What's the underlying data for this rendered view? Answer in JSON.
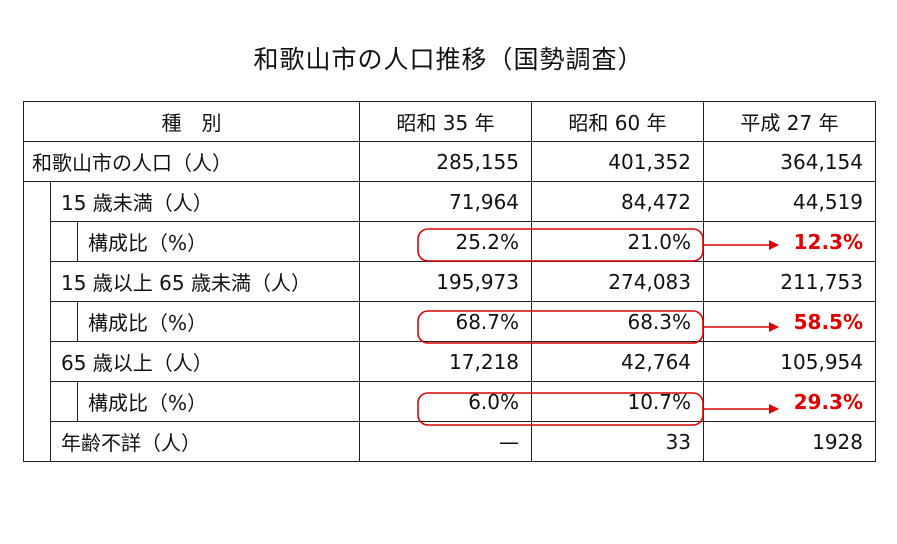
{
  "title": "和歌山市の人口推移（国勢調査）",
  "headers": [
    "種　別",
    "昭和 35 年",
    "昭和 60 年",
    "平成 27 年"
  ],
  "rows": {
    "total": {
      "label": "和歌山市の人口（人）",
      "v1": "285,155",
      "v2": "401,352",
      "v3": "364,154"
    },
    "under15": {
      "label": "15 歳未満（人）",
      "v1": "71,964",
      "v2": "84,472",
      "v3": "44,519"
    },
    "under15_ratio": {
      "label": "構成比（%）",
      "v1": "25.2%",
      "v2": "21.0%",
      "v3": "12.3%"
    },
    "mid": {
      "label": "15 歳以上 65 歳未満（人）",
      "v1": "195,973",
      "v2": "274,083",
      "v3": "211,753"
    },
    "mid_ratio": {
      "label": "構成比（%）",
      "v1": "68.7%",
      "v2": "68.3%",
      "v3": "58.5%"
    },
    "over65": {
      "label": "65 歳以上（人）",
      "v1": "17,218",
      "v2": "42,764",
      "v3": "105,954"
    },
    "over65_ratio": {
      "label": "構成比（%）",
      "v1": "6.0%",
      "v2": "10.7%",
      "v3": "29.3%"
    },
    "unknown": {
      "label": "年齢不詳（人）",
      "v1": "—",
      "v2": "33",
      "v3": "1928"
    }
  },
  "colors": {
    "highlight": "#e00000",
    "border": "#222222"
  }
}
